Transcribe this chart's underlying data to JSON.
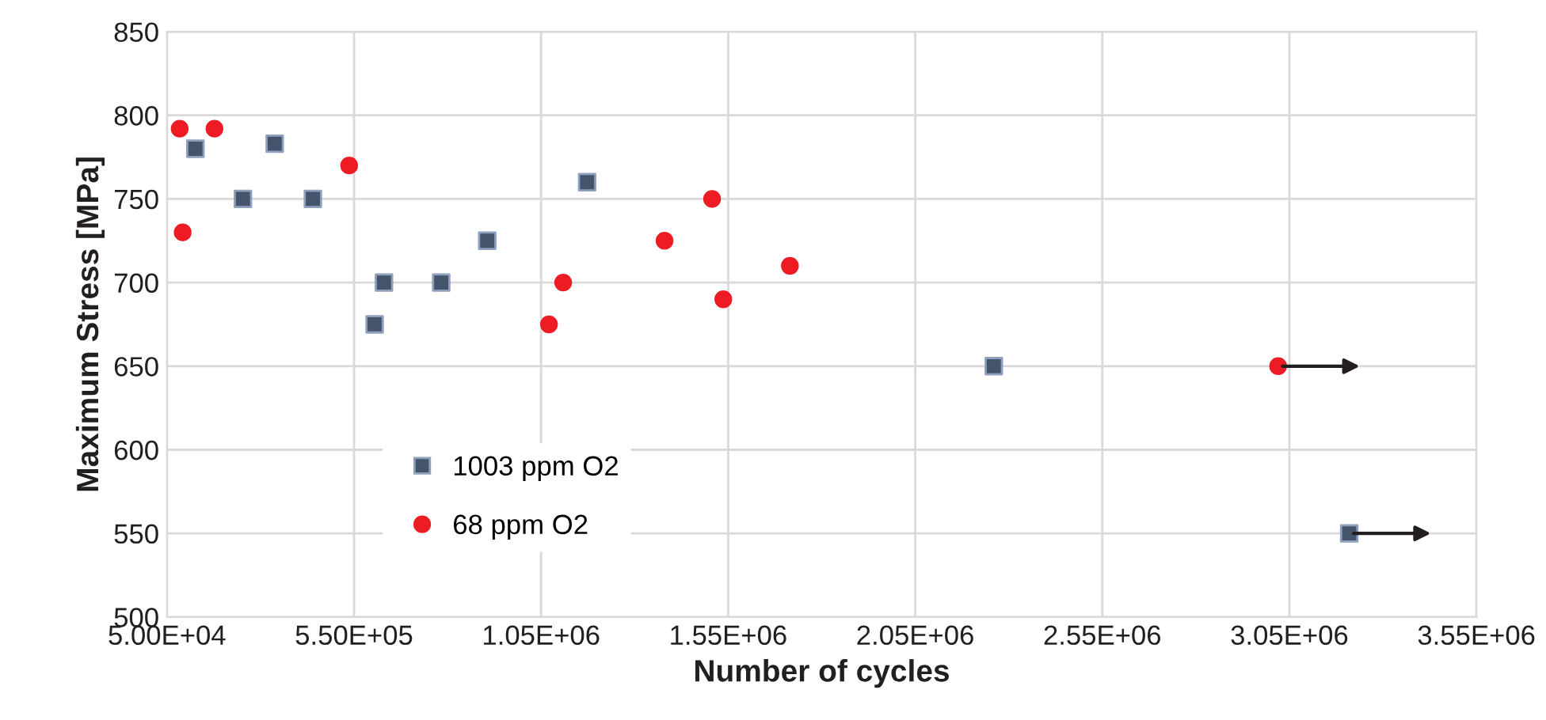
{
  "chart_data": {
    "type": "scatter",
    "xlabel": "Number of cycles",
    "ylabel": "Maximum Stress [MPa]",
    "xlim": [
      50000,
      3550000
    ],
    "ylim": [
      500,
      850
    ],
    "xticks": [
      {
        "value": 50000,
        "label": "5.00E+04"
      },
      {
        "value": 550000,
        "label": "5.50E+05"
      },
      {
        "value": 1050000,
        "label": "1.05E+06"
      },
      {
        "value": 1550000,
        "label": "1.55E+06"
      },
      {
        "value": 2050000,
        "label": "2.05E+06"
      },
      {
        "value": 2550000,
        "label": "2.55E+06"
      },
      {
        "value": 3050000,
        "label": "3.05E+06"
      },
      {
        "value": 3550000,
        "label": "3.55E+06"
      }
    ],
    "yticks": [
      500,
      550,
      600,
      650,
      700,
      750,
      800,
      850
    ],
    "grid": true,
    "legend": "bottom left",
    "series": [
      {
        "name": "1003 ppm O2",
        "color": "#44546a",
        "marker": "square",
        "x": [
          126000,
          253000,
          338000,
          440000,
          605000,
          630000,
          783000,
          906000,
          1173000,
          2260000,
          3210000
        ],
        "values": [
          780,
          750,
          783,
          750,
          675,
          700,
          700,
          725,
          760,
          650,
          550
        ]
      },
      {
        "name": "68 ppm O2",
        "color": "#ed1c24",
        "marker": "circle",
        "x": [
          84000,
          92000,
          177000,
          537000,
          1071000,
          1109000,
          1380000,
          1507000,
          1537000,
          1715000,
          3020000
        ],
        "values": [
          792,
          730,
          792,
          770,
          675,
          700,
          725,
          750,
          690,
          710,
          650
        ]
      }
    ]
  }
}
